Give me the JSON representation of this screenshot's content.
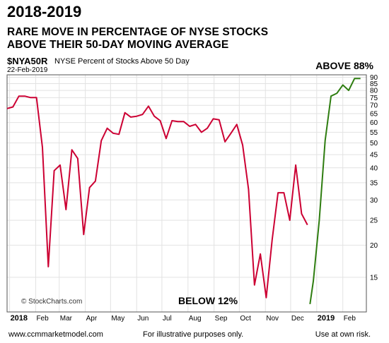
{
  "header": {
    "headline": "2018-2019",
    "subtitle_line1": "RARE MOVE IN PERCENTAGE OF NYSE STOCKS",
    "subtitle_line2": "ABOVE THEIR 50-DAY MOVING AVERAGE",
    "ticker": "$NYA50R",
    "description": "NYSE Percent of Stocks Above 50 Day",
    "date": "22-Feb-2019"
  },
  "annotations": {
    "above": "ABOVE 88%",
    "below": "BELOW 12%",
    "copyright": "© StockCharts.com"
  },
  "footer": {
    "left": "www.ccmmarketmodel.com",
    "middle": "For illustrative purposes only.",
    "right": "Use at own risk."
  },
  "colors": {
    "decline_line": "#cc0033",
    "rise_line": "#2e7d10",
    "grid": "#e2e2e2"
  },
  "chart_data": {
    "type": "line",
    "title": "2018-2019",
    "ylabel": "",
    "xlabel": "",
    "y_scale": "log",
    "ylim": [
      11,
      92
    ],
    "y_ticks": [
      15,
      20,
      25,
      30,
      35,
      40,
      45,
      50,
      55,
      60,
      65,
      70,
      75,
      80,
      85,
      90
    ],
    "x_ticks": [
      {
        "label": "2018",
        "date": "2018-01-01",
        "bold": true
      },
      {
        "label": "Feb",
        "date": "2018-02-01"
      },
      {
        "label": "Mar",
        "date": "2018-03-01"
      },
      {
        "label": "Apr",
        "date": "2018-04-01"
      },
      {
        "label": "May",
        "date": "2018-05-01"
      },
      {
        "label": "Jun",
        "date": "2018-06-01"
      },
      {
        "label": "Jul",
        "date": "2018-07-01"
      },
      {
        "label": "Aug",
        "date": "2018-08-01"
      },
      {
        "label": "Sep",
        "date": "2018-09-01"
      },
      {
        "label": "Oct",
        "date": "2018-10-01"
      },
      {
        "label": "Nov",
        "date": "2018-11-01"
      },
      {
        "label": "Dec",
        "date": "2018-12-01"
      },
      {
        "label": "2019",
        "date": "2019-01-01",
        "bold": true
      },
      {
        "label": "Feb",
        "date": "2019-02-01"
      }
    ],
    "xlim": [
      "2017-12-29",
      "2019-03-01"
    ],
    "grid": true,
    "series": [
      {
        "color": "#cc0033",
        "x": [
          "2017-12-29",
          "2018-01-05",
          "2018-01-12",
          "2018-01-19",
          "2018-01-26",
          "2018-02-02",
          "2018-02-09",
          "2018-02-16",
          "2018-02-23",
          "2018-03-02",
          "2018-03-09",
          "2018-03-16",
          "2018-03-23",
          "2018-03-30",
          "2018-04-06",
          "2018-04-13",
          "2018-04-20",
          "2018-04-27",
          "2018-05-04",
          "2018-05-11",
          "2018-05-18",
          "2018-05-25",
          "2018-06-01",
          "2018-06-08",
          "2018-06-15",
          "2018-06-22",
          "2018-06-29",
          "2018-07-06",
          "2018-07-13",
          "2018-07-20",
          "2018-07-27",
          "2018-08-03",
          "2018-08-10",
          "2018-08-17",
          "2018-08-24",
          "2018-08-31",
          "2018-09-07",
          "2018-09-14",
          "2018-09-21",
          "2018-09-28",
          "2018-10-05",
          "2018-10-12",
          "2018-10-19",
          "2018-10-26",
          "2018-11-02",
          "2018-11-09",
          "2018-11-16",
          "2018-11-23",
          "2018-11-30",
          "2018-12-07",
          "2018-12-14",
          "2018-12-21"
        ],
        "values": [
          68,
          69,
          76,
          76,
          75,
          75,
          48,
          16.5,
          39,
          41,
          27.5,
          47,
          43.5,
          22,
          33.5,
          35.5,
          51,
          57,
          54.5,
          54,
          65.5,
          63,
          63.5,
          64.5,
          69.5,
          63.5,
          61,
          52,
          61,
          60.5,
          60.5,
          58,
          59,
          55,
          57,
          62,
          61.5,
          50.5,
          54.5,
          59,
          49,
          33,
          14,
          18.5,
          12.5,
          21,
          32,
          32,
          25,
          41,
          26.5,
          24
        ]
      },
      {
        "color": "#2e7d10",
        "x": [
          "2018-12-24",
          "2018-12-28",
          "2019-01-04",
          "2019-01-11",
          "2019-01-18",
          "2019-01-25",
          "2019-02-01",
          "2019-02-08",
          "2019-02-15",
          "2019-02-22"
        ],
        "values": [
          11.8,
          14.5,
          25,
          51,
          76,
          78,
          84,
          80,
          89,
          89
        ]
      }
    ]
  }
}
